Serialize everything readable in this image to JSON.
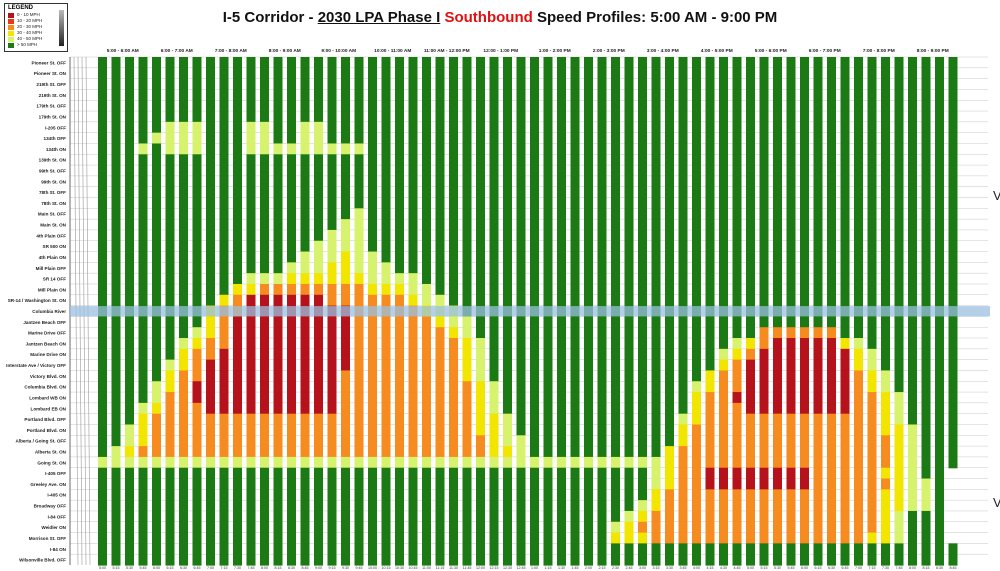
{
  "title": {
    "part1": "I-5 Corridor - ",
    "part2": "2030 LPA Phase I",
    "part3": " ",
    "part4": "Southbound",
    "part5": " Speed Profiles: 5:00 AM - 9:00 PM"
  },
  "legend": {
    "title": "LEGEND",
    "items": [
      {
        "label": "0 - 10 MPH",
        "color": "#b5121b"
      },
      {
        "label": "10 - 20 MPH",
        "color": "#e63b16"
      },
      {
        "label": "20 - 30 MPH",
        "color": "#f68b1f"
      },
      {
        "label": "30 - 40 MPH",
        "color": "#f2e600"
      },
      {
        "label": "40 - 50 MPH",
        "color": "#d7f26c"
      },
      {
        "label": "> 50 MPH",
        "color": "#1b7a14"
      }
    ]
  },
  "markers": {
    "top": "V",
    "bottom": "V"
  },
  "chart_data": {
    "type": "heatmap",
    "title": "I-5 Corridor - 2030 LPA Phase I Southbound Speed Profiles: 5:00 AM - 9:00 PM",
    "hours": [
      "5:00 - 6:00 AM",
      "6:00 - 7:00 AM",
      "7:00 - 8:00 AM",
      "8:00 - 9:00 AM",
      "9:00 - 10:00 AM",
      "10:00 - 11:00 AM",
      "11:00 AM - 12:00 PM",
      "12:00 - 1:00 PM",
      "1:00 - 2:00 PM",
      "2:00 - 3:00 PM",
      "3:00 - 4:00 PM",
      "4:00 - 5:00 PM",
      "5:00 - 6:00 PM",
      "6:00 - 7:00 PM",
      "7:00 - 8:00 PM",
      "8:00 - 9:00 PM"
    ],
    "intervals": [
      "5:00",
      "5:15",
      "5:30",
      "5:45",
      "6:00",
      "6:15",
      "6:30",
      "6:45",
      "7:00",
      "7:15",
      "7:30",
      "7:45",
      "8:00",
      "8:15",
      "8:30",
      "8:45",
      "9:00",
      "9:15",
      "9:30",
      "9:45",
      "10:00",
      "10:15",
      "10:30",
      "10:45",
      "11:00",
      "11:15",
      "11:30",
      "11:45",
      "12:00",
      "12:15",
      "12:30",
      "12:45",
      "1:00",
      "1:15",
      "1:30",
      "1:45",
      "2:00",
      "2:15",
      "2:30",
      "2:45",
      "3:00",
      "3:15",
      "3:30",
      "3:45",
      "4:00",
      "4:15",
      "4:30",
      "4:45",
      "5:00",
      "5:15",
      "5:30",
      "5:45",
      "6:00",
      "6:15",
      "6:30",
      "6:45",
      "7:00",
      "7:15",
      "7:30",
      "7:45",
      "8:00",
      "8:15",
      "8:30",
      "8:45"
    ],
    "locations": [
      "Pioneer St. OFF",
      "Pioneer St. ON",
      "219th St. OFF",
      "219th St. ON",
      "179th St. OFF",
      "179th St. ON",
      "I-205 OFF",
      "134th OFF",
      "134th ON",
      "139th St. ON",
      "99th St. OFF",
      "99th St. ON",
      "78th St. OFF",
      "78th St. ON",
      "Main St. OFF",
      "Main St. ON",
      "4th Plain OFF",
      "SR 500 ON",
      "4th Plain ON",
      "Mill Plain OFF",
      "SR 14 OFF",
      "Mill Plain ON",
      "SR-14 / Washington St. ON",
      "Columbia River",
      "Jantzen Beach OFF",
      "Marine Drive OFF",
      "Jantzen Beach ON",
      "Marine Drive ON",
      "Interstate Ave / Victory OFF",
      "Victory Blvd. ON",
      "Columbia Blvd. ON",
      "Lombard WB ON",
      "Lombard EB ON",
      "Portland Blvd. OFF",
      "Portland Blvd. ON",
      "Alberta / Going St. OFF",
      "Alberta St. ON",
      "Going St. ON",
      "I-405 OFF",
      "Greeley Ave. ON",
      "I-405 ON",
      "Broadway OFF",
      "I-84 OFF",
      "Weidler ON",
      "Morrison St. OFF",
      "I-84 ON",
      "Wilsonville Blvd. OFF"
    ],
    "speed_bins": [
      "0 - 10 MPH",
      "10 - 20 MPH",
      "20 - 30 MPH",
      "30 - 40 MPH",
      "40 - 50 MPH",
      "> 50 MPH"
    ],
    "grid": [
      "GGGGGGGGGGGGGGGGGGGGGGGGGGGGGGGGGGGGGGGGGGGGGGGGGGGGGGGGGGGGGGGG",
      "GGGGGGGGGGGGGGGGGGGGGGGGGGGGGGGGGGGGGGGGGGGGGGGGGGGGGGGGGGGGGGGG",
      "GGGGGGGGGGGGGGGGGGGGGGGGGGGGGGGGGGGGGGGGGGGGGGGGGGGGGGGGGGGGGGGG",
      "GGGGGGGGGGGGGGGGGGGGGGGGGGGGGGGGGGGGGGGGGGGGGGGGGGGGGGGGGGGGGGGG",
      "GGGGGGGGGGGGGGGGGGGGGGGGGGGGGGGGGGGGGGGGGGGGGGGGGGGGGGGGGGGGGGGG",
      "GGGGGGGGGGGGGGGGGGGGGGGGGGGGGGGGGGGGGGGGGGGGGGGGGGGGGGGGGGGGGGGG",
      "GGGGGLLLGGGLLGGLLGGGGGGGGGGGGGGGGGGGGGGGGGGGGGGGGGGGGGGGGGGGGGGG",
      "GGGGLLLLGGGLLGGLLGGGGGGGGGGGGGGGGGGGGGGGGGGGGGGGGGGGGGGGGGGGGGGG",
      "GGGLGLLLGGGLLLLLLLLLGGGGGGGGGGGGGGGGGGGGGGGGGGGGGGGGGGGGGGGGGGGG",
      "GGGGGGGGGGGGGGGGGGGGGGGGGGGGGGGGGGGGGGGGGGGGGGGGGGGGGGGGGGGGGGGG",
      "GGGGGGGGGGGGGGGGGGGGGGGGGGGGGGGGGGGGGGGGGGGGGGGGGGGGGGGGGGGGGGGG",
      "GGGGGGGGGGGGGGGGGGGGGGGGGGGGGGGGGGGGGGGGGGGGGGGGGGGGGGGGGGGGGGGG",
      "GGGGGGGGGGGGGGGGGGGGGGGGGGGGGGGGGGGGGGGGGGGGGGGGGGGGGGGGGGGGGGGG",
      "GGGGGGGGGGGGGGGGGGGGGGGGGGGGGGGGGGGGGGGGGGGGGGGGGGGGGGGGGGGGGGGG",
      "GGGGGGGGGGGGGGGGGGGLGGGGGGGGGGGGGGGGGGGGGGGGGGGGGGGGGGGGGGGGGGGG",
      "GGGGGGGGGGGGGGGGGGLLGGGGGGGGGGGGGGGGGGGGGGGGGGGGGGGGGGGGGGGGGGGG",
      "GGGGGGGGGGGGGGGGGLLLGGGGGGGGGGGGGGGGGGGGGGGGGGGGGGGGGGGGGGGGGGGG",
      "GGGGGGGGGGGGGGGGLLLLGGGGGGGGGGGGGGGGGGGGGGGGGGGGGGGGGGGGGGGGGGGG",
      "GGGGGGGGGGGGGGGLLLYLLGGGGGGGGGGGGGGGGGGGGGGGGGGGGGGGGGGGGGGGGGGG",
      "GGGGGGGGGGGGGGLLLYYLLLGGGGGGGGGGGGGGGGGGGGGGGGGGGGGGGGGGGGGGGGGG",
      "GGGGGGGGGGGLLLYYYYYYLLLLGGGGGGGGGGGGGGGGGGGGGGGGGGGGGGGGGGGGGGGG",
      "GGGGGGGGGGYYOOOOOOOOYYYLLGGGGGGGGGGGGGGGGGGGGGGGGGGGGGGGGGGGGGGG",
      "GGGGGGGGGYORRRRRROOOOOOYLLGGGGGGGGGGGGGGGGGGGGGGGGGGGGGGGGGGGGGG",
      "GGGGGGGGYOORRRRRRRROOOOOYLLGGGGGGGGGGGGGGGGGGGGGGGGGGGGGGGGGGGGG",
      "GGGGGGGGYORRRRRRRRROOOOOOYLLGGGGGGGGGGGGGGGGGGGGGGGGGGGGGGGGGGGG",
      "GGGGGGGLYORRRRRRRRROOOOOOOYLGGGGGGGGGGGGGGGGGGGGGOOOOOOGGGGGGGGG",
      "GGGGGGLYOORRRRRRRRROOOOOOOOYLGGGGGGGGGGGGGGGGGGLYORRRRRYLGGGGGGG",
      "GGGGGGYOORRRRRRRRRROOOOOOOOYLGGGGGGGGGGGGGGGGGLYORRRRRRRYLGGGGGG",
      "GGGGGLYORRRRRRRRRRROOOOOOOOYLGGGGGGGGGGGGGGGGGYORRRRRRRRYLGGGGGG",
      "GGGGGYOORRRRRRRRRROOOOOOOOOYLGGGGGGGGGGGGGGGGYOORRRRRRRROYLGGGGG",
      "GGGGLYORRRRRRRRRRROOOOOOOOOOYLGGGGGGGGGGGGGGLYOORRRRRRRROYLGGGGG",
      "GGGGLOORRRRRRRRRRROOOOOOOOOOYLGGGGGGGGGGGGGGYOORRRRRRRRROOYLGGGG",
      "GGGLYOOORRRRRRRRRROOOOOOOOOOYLGGGGGGGGGGGGGGYOOORRRRRRRROOYLGGGG",
      "GGGYOOOOOOOOOOOOOOOOOOOOOOOOYYLGGGGGGGGGGGGLYOOOOOOOOOOOOOYLGGGG",
      "GGLYOOOOOOOOOOOOOOOOOOOOOOOOYYLGGGGGGGGGGGGYOOOOOOOOOOOOOOYYLGGG",
      "GGLYOOOOOOOOOOOOOOOOOOOOOOOOOYLLGGGGGGGGGGGYOOOOOOOOOOOOOOOYLGGG",
      "GLYOOOOOOOOOOOOOOOOOOOOOOOOOOYYLGGGGGGGGGGYOOOOOOOOOOOOOOOOYLGGG",
      "LLLLLLLLLLLLLLLLLLLLLLLLLLLLLLLLLLLLLLLLLLYOOOOOOOOOOOOOOOOYLGGG",
      "GGGGGGGGGGGGGGGGGGGGGGGGGGGGGGGGGGGGGGGGGLYOORRRRRRRROOOOOYYLGG",
      "GGGGGGGGGGGGGGGGGGGGGGGGGGGGGGGGGGGGGGGGGLYOORRRRRRRROOOOOOYLLG",
      "GGGGGGGGGGGGGGGGGGGGGGGGGGGGGGGGGGGGGGGGGYOOOOOOOOOOOOOOOOYYLLG",
      "GGGGGGGGGGGGGGGGGGGGGGGGGGGGGGGGGGGGGGGGLYOOOOOOOOOOOOOOOOYYLLG",
      "GGGGGGGGGGGGGGGGGGGGGGGGGGGGGGGGGGGGGGGLYOOOOOOOOOOOOOOOOOYLGGG",
      "GGGGGGGGGGGGGGGGGGGGGGGGGGGGGGGGGGGGGGLYOOOOOOOOOOOOOOOOOOYLGGG",
      "GGGGGGGGGGGGGGGGGGGGGGGGGGGGGGGGGGGGGGYYYOOOOOOOOOOOOOOOOYYLGGG",
      "GGGGGGGGGGGGGGGGGGGGGGGGGGGGGGGGGGGGGGGGGGGGGGGGGGGGGGGGGGGGGGGG",
      "GGGGGGGGGGGGGGGGGGGGGGGGGGGGGGGGGGGGGGGGGGGGGGGGGGGGGGGGGGGGGGGG"
    ],
    "grid_key": {
      "R": "0 - 10 MPH",
      "O": "20 - 30 MPH",
      "Y": "30 - 40 MPH",
      "L": "40 - 50 MPH",
      "G": "> 50 MPH"
    },
    "highlighted_row": "Columbia River"
  }
}
